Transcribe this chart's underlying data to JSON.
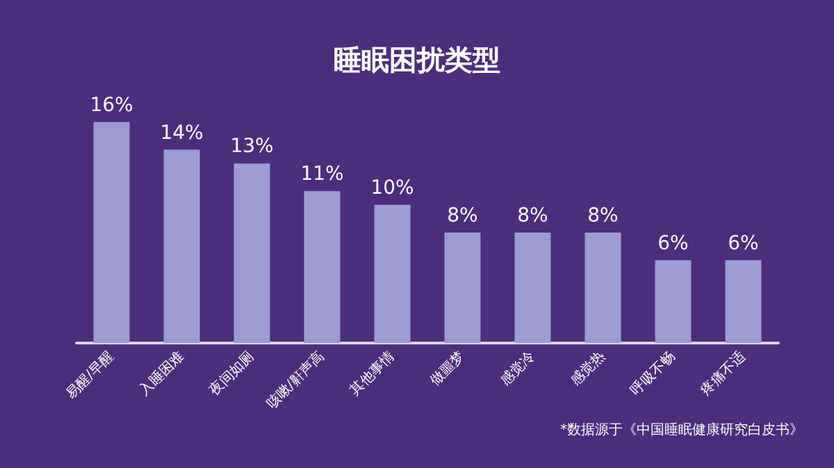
{
  "chart_data": {
    "type": "bar",
    "title": "睡眠困扰类型",
    "categories": [
      "易醒/早醒",
      "入睡困难",
      "夜间如厕",
      "咳嗽/鼾声高",
      "其他事情",
      "做噩梦",
      "感觉冷",
      "感觉热",
      "呼吸不畅",
      "疼痛不适"
    ],
    "values": [
      16,
      14,
      13,
      11,
      10,
      8,
      8,
      8,
      6,
      6
    ],
    "value_labels": [
      "16%",
      "14%",
      "13%",
      "11%",
      "10%",
      "8%",
      "8%",
      "8%",
      "6%",
      "6%"
    ],
    "color": "#9d9bd0",
    "annotations": [
      "*数据源于《中国睡眠健康研究白皮书》"
    ]
  }
}
